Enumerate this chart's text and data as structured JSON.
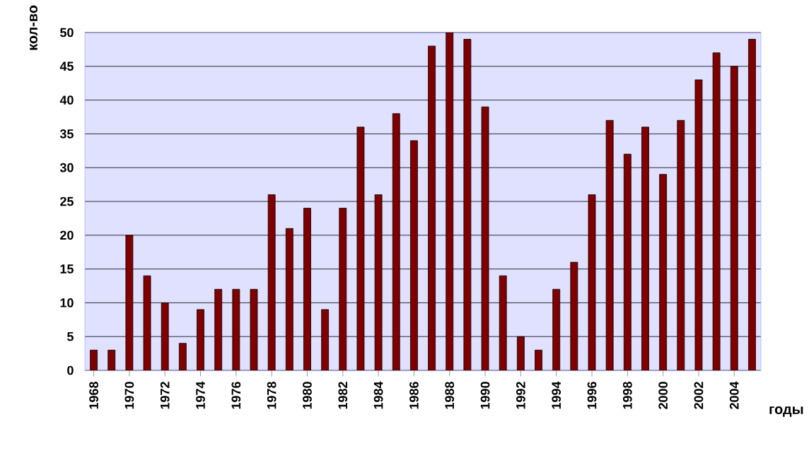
{
  "chart_data": {
    "type": "bar",
    "xlabel": "годы",
    "ylabel": "кол-во",
    "categories": [
      "1968",
      null,
      "1970",
      null,
      "1972",
      null,
      "1974",
      null,
      "1976",
      null,
      "1978",
      null,
      "1980",
      null,
      "1982",
      null,
      "1984",
      null,
      "1986",
      null,
      "1988",
      null,
      "1990",
      null,
      "1992",
      null,
      "1994",
      null,
      "1996",
      null,
      "1998",
      null,
      "2000",
      null,
      "2002",
      null,
      "2004",
      null
    ],
    "values": [
      3,
      3,
      20,
      14,
      10,
      4,
      9,
      12,
      12,
      12,
      26,
      21,
      24,
      9,
      24,
      36,
      26,
      38,
      34,
      48,
      50,
      49,
      39,
      14,
      5,
      3,
      12,
      16,
      26,
      37,
      32,
      36,
      29,
      37,
      43,
      47,
      45,
      49
    ],
    "color": "#800000",
    "ylim": [
      0,
      50
    ],
    "yticks": [
      0,
      5,
      10,
      15,
      20,
      25,
      30,
      35,
      40,
      45,
      50
    ],
    "grid": "y"
  }
}
